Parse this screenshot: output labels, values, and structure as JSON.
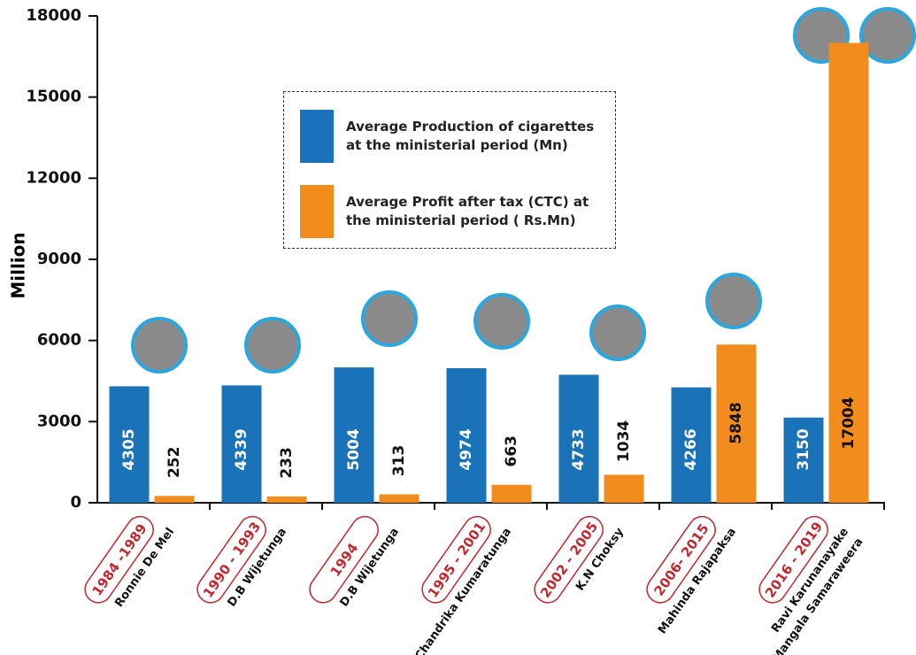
{
  "chart_data": {
    "type": "bar",
    "y_label": "Million",
    "categories": [
      "1984 -1989",
      "1990 - 1993",
      "1994",
      "1995 - 2001",
      "2002 - 2005",
      "2006- 2015",
      "2016 - 2019"
    ],
    "names": [
      [
        "Ronnie De Mel"
      ],
      [
        "D.B Wijetunga"
      ],
      [
        "D.B Wijetunga"
      ],
      [
        "Chandrika Kumaratunga"
      ],
      [
        "K.N Choksy"
      ],
      [
        "Mahinda Rajapaksa"
      ],
      [
        "Ravi Karunanayake",
        "Mangala Samaraweera"
      ]
    ],
    "series": [
      {
        "name": "Average Production of cigarettes at the ministerial period (Mn)",
        "color": "#1a72b8",
        "values": [
          4305,
          4339,
          5004,
          4974,
          4733,
          4266,
          3150
        ]
      },
      {
        "name": "Average Profit after tax (CTC) at the ministerial period ( Rs.Mn)",
        "color": "#f28c1c",
        "values": [
          252,
          233,
          313,
          663,
          1034,
          5848,
          17004
        ]
      }
    ],
    "ylim": [
      0,
      18000
    ],
    "yticks": [
      0,
      3000,
      6000,
      9000,
      12000,
      15000,
      18000
    ],
    "grid": false
  }
}
